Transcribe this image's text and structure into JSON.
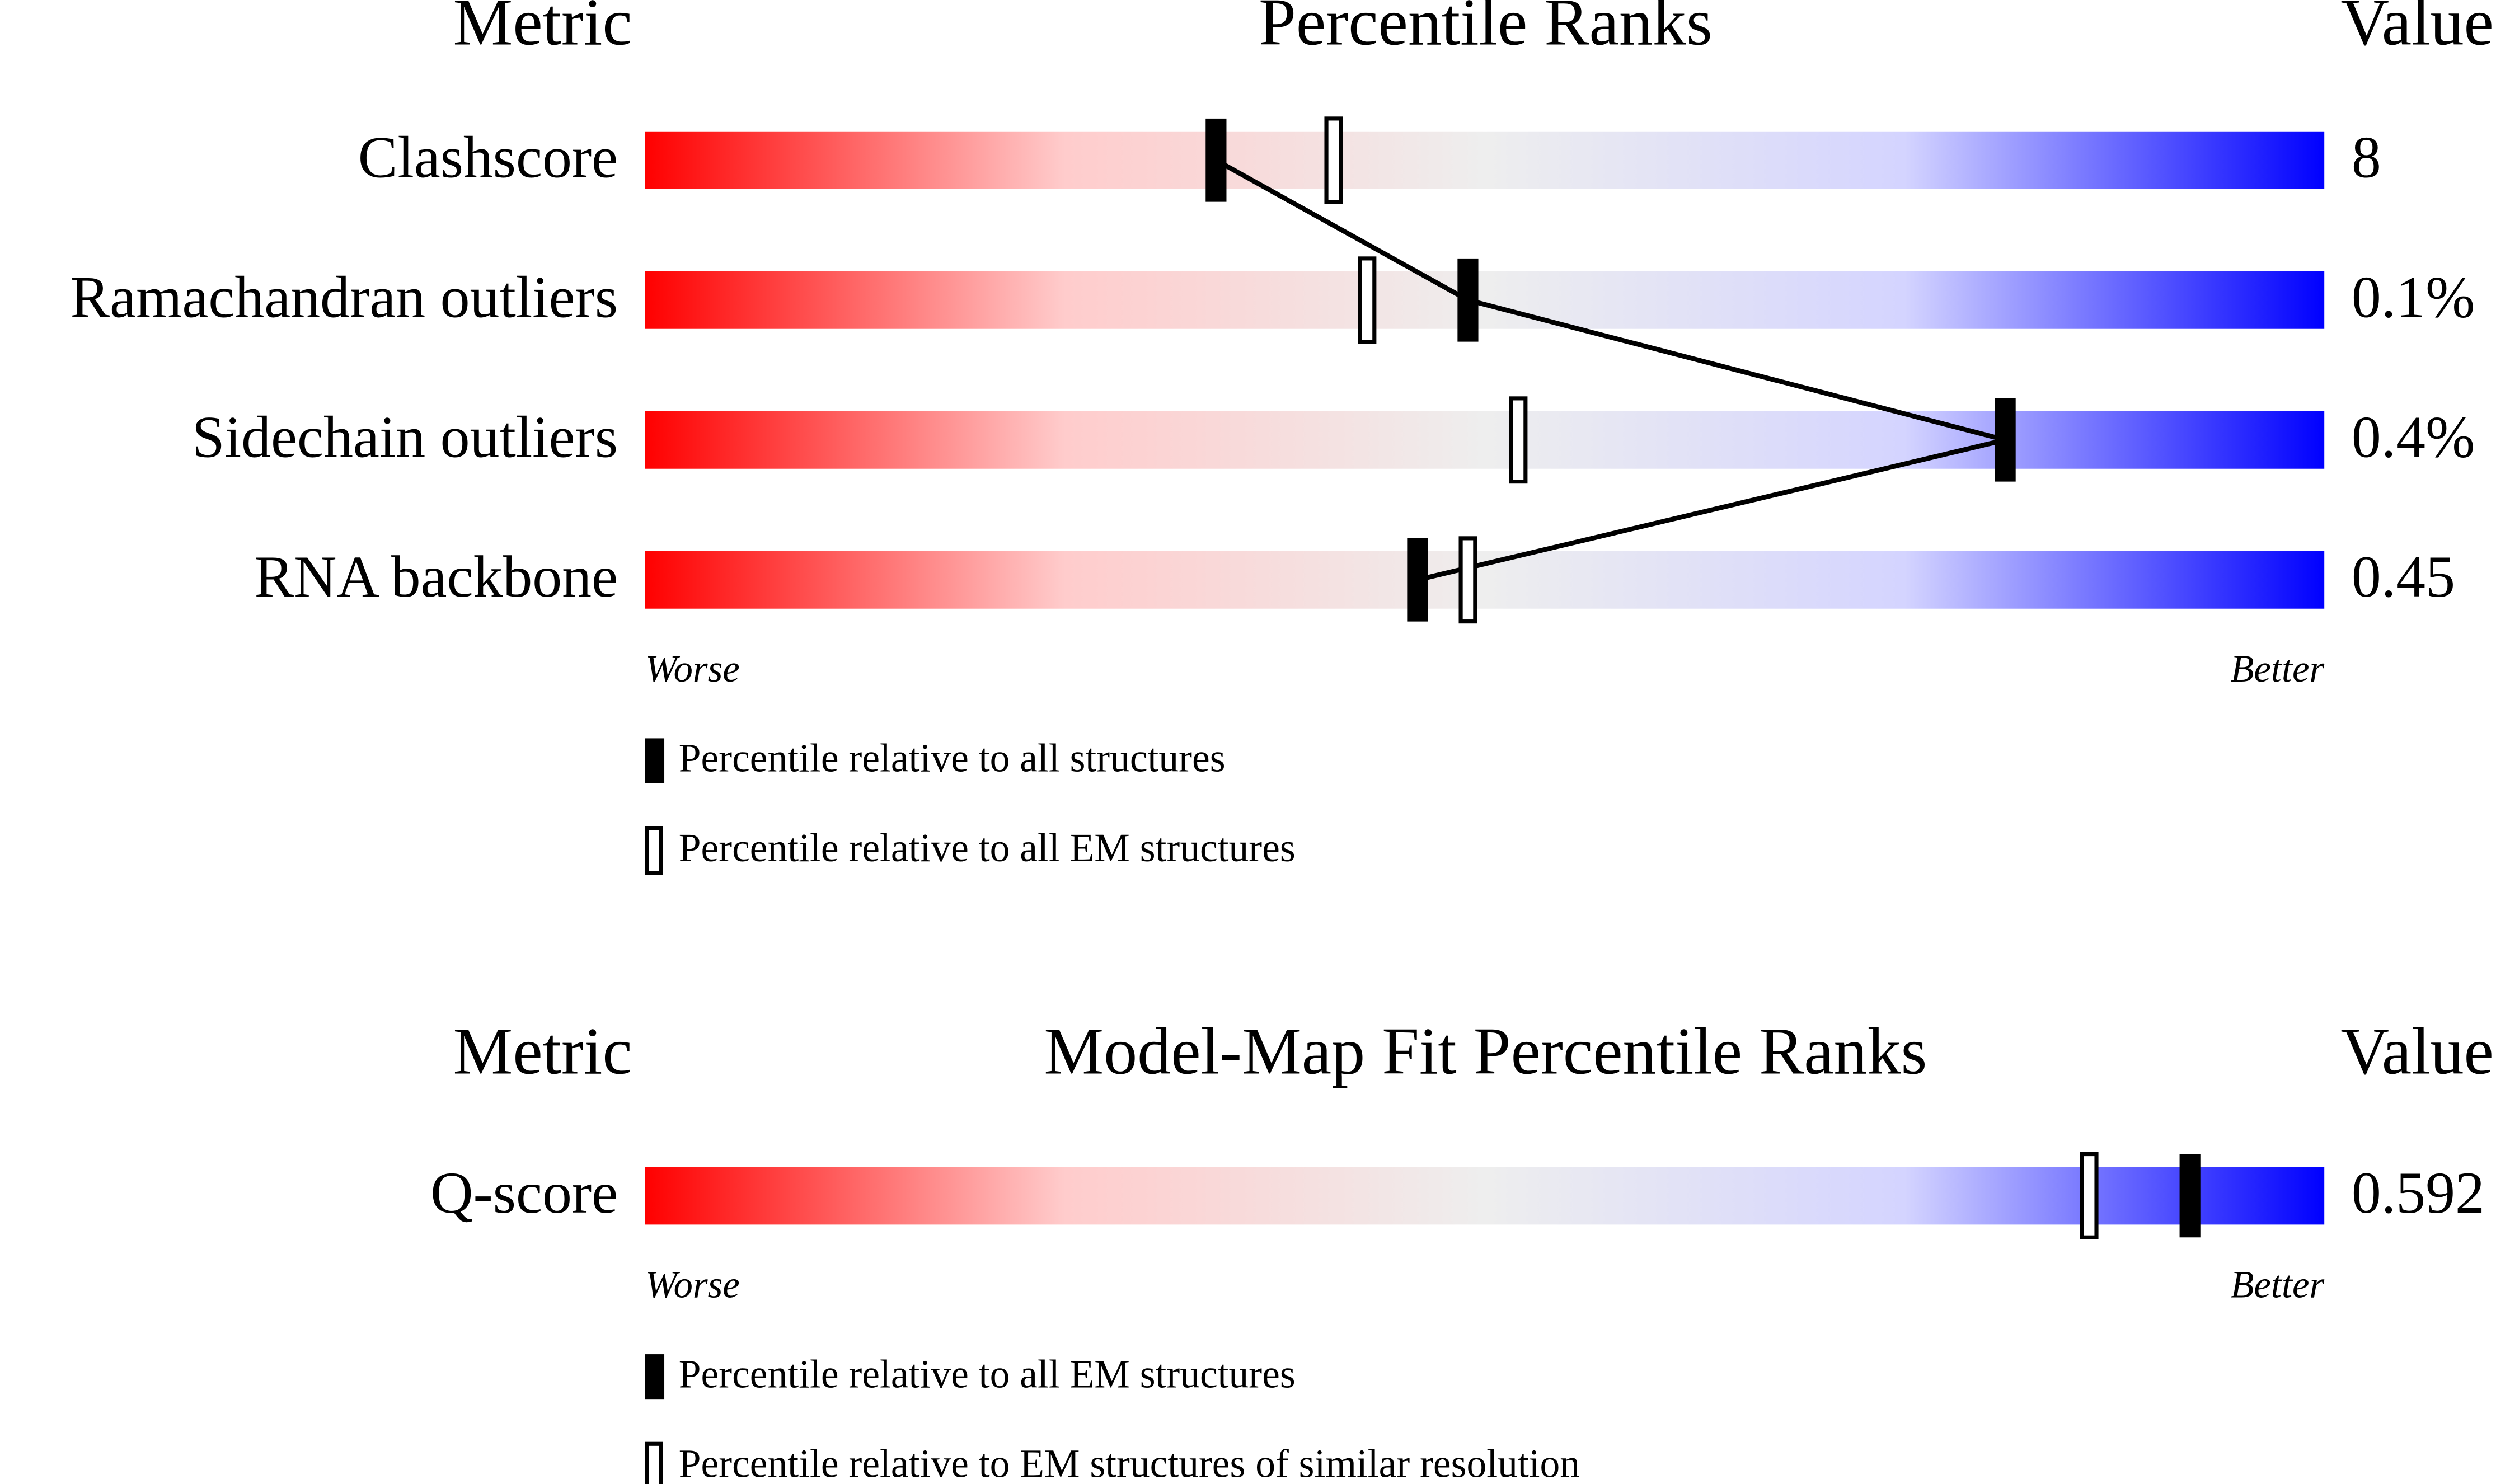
{
  "chart_data": [
    {
      "type": "percentile-slider",
      "metric_header": "Metric",
      "title": "Percentile Ranks",
      "value_header": "Value",
      "categories": [
        "Clashscore",
        "Ramachandran outliers",
        "Sidechain outliers",
        "RNA backbone"
      ],
      "value_labels": [
        "8",
        "0.1%",
        "0.4%",
        "0.45"
      ],
      "worse_label": "Worse",
      "better_label": "Better",
      "xlim": [
        0,
        100
      ],
      "gradient": [
        "#ff0000",
        "#ffcccc",
        "#eeeeee",
        "#d4d4ff",
        "#0000ff"
      ],
      "connect_first_series": true,
      "series": [
        {
          "name": "Percentile relative to all structures",
          "color": "#000000",
          "marker": "filled",
          "values": [
            34,
            49,
            81,
            46
          ]
        },
        {
          "name": "Percentile relative to all EM structures",
          "color": "#000000",
          "marker": "open",
          "values": [
            41,
            43,
            52,
            49
          ]
        }
      ]
    },
    {
      "type": "percentile-slider",
      "metric_header": "Metric",
      "title": "Model-Map Fit Percentile Ranks",
      "value_header": "Value",
      "categories": [
        "Q-score"
      ],
      "value_labels": [
        "0.592"
      ],
      "worse_label": "Worse",
      "better_label": "Better",
      "xlim": [
        0,
        100
      ],
      "gradient": [
        "#ff0000",
        "#ffcccc",
        "#eeeeee",
        "#d4d4ff",
        "#0000ff"
      ],
      "connect_first_series": true,
      "series": [
        {
          "name": "Percentile relative to all EM structures",
          "color": "#000000",
          "marker": "filled",
          "values": [
            92
          ]
        },
        {
          "name": "Percentile relative to EM structures of similar resolution",
          "color": "#000000",
          "marker": "open",
          "values": [
            86
          ]
        }
      ]
    }
  ]
}
